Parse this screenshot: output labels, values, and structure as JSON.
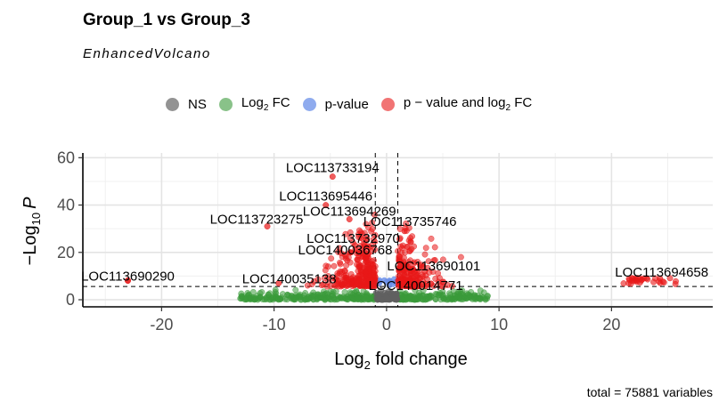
{
  "chart_data": {
    "type": "scatter",
    "title": "Group_1 vs Group_3",
    "subtitle": "EnhancedVolcano",
    "xlabel": {
      "base": "Log",
      "sub": "2",
      "rest": " fold change"
    },
    "ylabel": {
      "prefix": "−Log",
      "sub": "10",
      "italic": "P"
    },
    "caption": "total = 75881 variables",
    "xlim": [
      -27,
      29
    ],
    "ylim": [
      -3,
      62
    ],
    "x_ticks": [
      -20,
      -10,
      0,
      10,
      20
    ],
    "y_ticks": [
      0,
      20,
      40,
      60
    ],
    "fc_cutoff": 1,
    "p_cutoff_log10": 5.6,
    "grid": true,
    "legend_position": "top",
    "legend": [
      {
        "key": "NS",
        "label": "NS",
        "color": "#808080"
      },
      {
        "key": "FC",
        "label": "Log",
        "sub": "2",
        "rest": " FC",
        "color": "#3a9a3a"
      },
      {
        "key": "P",
        "label": "p-value",
        "color": "#6a8fe8"
      },
      {
        "key": "P_FC",
        "label": "p − value and log",
        "sub": "2",
        "rest": " FC",
        "color": "#e81818"
      }
    ],
    "labeled_points": [
      {
        "gene": "LOC113733194",
        "x": -4.8,
        "y": 52
      },
      {
        "gene": "LOC113695446",
        "x": -5.4,
        "y": 40
      },
      {
        "gene": "LOC113694269",
        "x": -3.3,
        "y": 34
      },
      {
        "gene": "LOC113723275",
        "x": -10.6,
        "y": 31
      },
      {
        "gene": "LOC113735746",
        "x": 1.6,
        "y": 29
      },
      {
        "gene": "LOC113732970",
        "x": -2.8,
        "y": 23
      },
      {
        "gene": "LOC140036768",
        "x": -3.2,
        "y": 20
      },
      {
        "gene": "LOC113690101",
        "x": 3.4,
        "y": 12
      },
      {
        "gene": "LOC140035138",
        "x": -9.6,
        "y": 7
      },
      {
        "gene": "LOC140014771",
        "x": 1.8,
        "y": 6
      },
      {
        "gene": "LOC113690290",
        "x": -23.0,
        "y": 8
      },
      {
        "gene": "LOC113694658",
        "x": 24.3,
        "y": 9
      }
    ]
  }
}
